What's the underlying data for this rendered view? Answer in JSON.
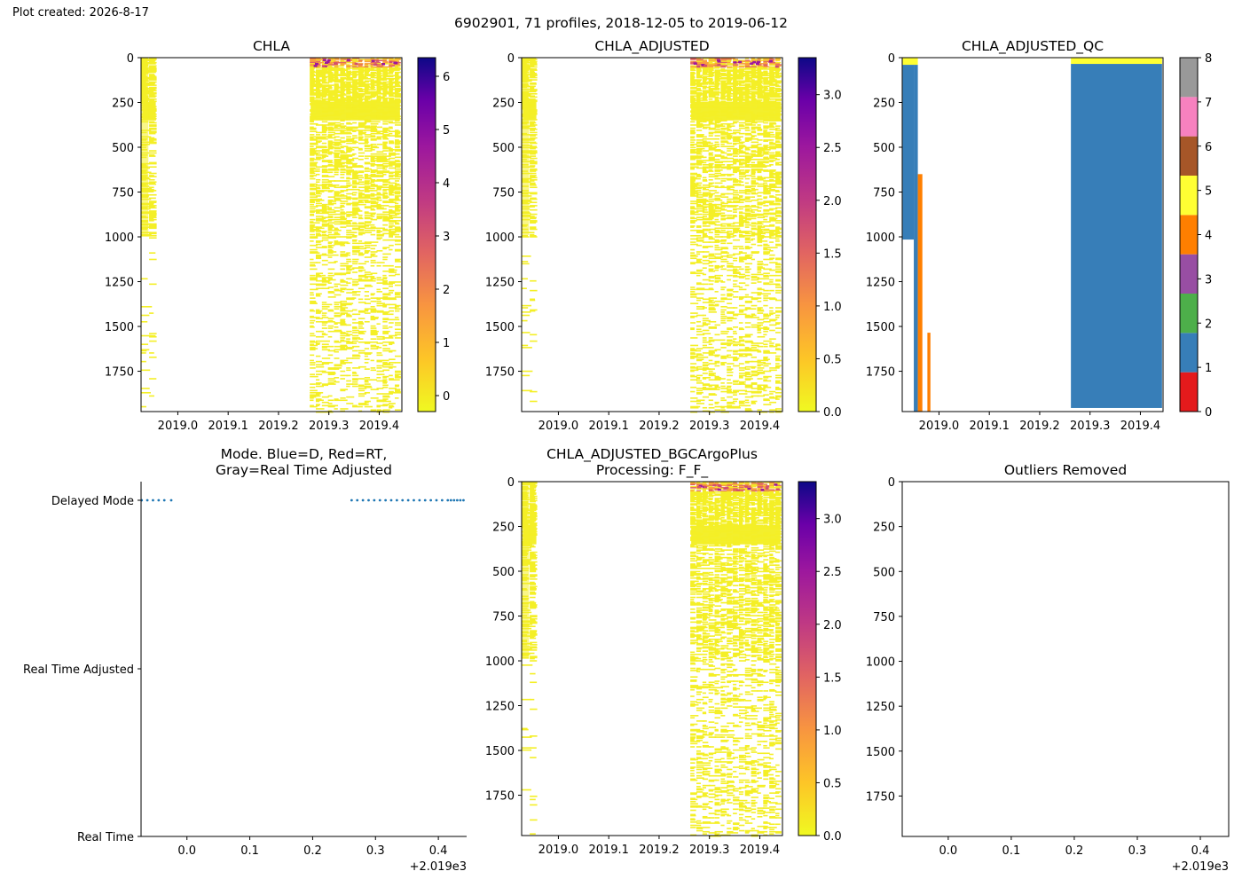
{
  "figure": {
    "created": "Plot created: 2026-8-17",
    "title": "6902901, 71 profiles, 2018-12-05 to 2019-06-12"
  },
  "chart_data": [
    {
      "id": "chla",
      "type": "heatmap",
      "title": "CHLA",
      "ylim": [
        1975,
        0
      ],
      "yticks": [
        0,
        250,
        500,
        750,
        1000,
        1250,
        1500,
        1750
      ],
      "xlim": [
        2018.927,
        2019.445
      ],
      "xticks": [
        2019.0,
        2019.1,
        2019.2,
        2019.3,
        2019.4
      ],
      "xticklabels": [
        "2019.0",
        "2019.1",
        "2019.2",
        "2019.3",
        "2019.4"
      ],
      "colormap": "plasma_r",
      "colorbar": {
        "min": -0.3,
        "max": 6.35,
        "ticks": [
          0,
          1,
          2,
          3,
          4,
          5,
          6
        ]
      },
      "data_extent": [
        {
          "x": [
            2018.928,
            2018.958
          ],
          "depth": [
            0,
            1975
          ]
        },
        {
          "x": [
            2019.262,
            2019.443
          ],
          "depth": [
            0,
            1975
          ]
        }
      ],
      "notes": "Sparse horizontal strokes of near-zero values (yellow); dense band ~250-350 m; occasional higher values (orange/purple) in top ~50 m."
    },
    {
      "id": "chla_adjusted",
      "type": "heatmap",
      "title": "CHLA_ADJUSTED",
      "ylim": [
        1975,
        0
      ],
      "yticks": [
        0,
        250,
        500,
        750,
        1000,
        1250,
        1500,
        1750
      ],
      "xlim": [
        2018.927,
        2019.445
      ],
      "xticks": [
        2019.0,
        2019.1,
        2019.2,
        2019.3,
        2019.4
      ],
      "xticklabels": [
        "2019.0",
        "2019.1",
        "2019.2",
        "2019.3",
        "2019.4"
      ],
      "colormap": "plasma_r",
      "colorbar": {
        "min": 0.0,
        "max": 3.35,
        "ticks": [
          0.0,
          0.5,
          1.0,
          1.5,
          2.0,
          2.5,
          3.0
        ]
      },
      "data_extent": [
        {
          "x": [
            2018.928,
            2018.958
          ],
          "depth": [
            0,
            1975
          ]
        },
        {
          "x": [
            2019.262,
            2019.443
          ],
          "depth": [
            0,
            1975
          ]
        }
      ]
    },
    {
      "id": "chla_adjusted_qc",
      "type": "heatmap",
      "title": "CHLA_ADJUSTED_QC",
      "ylim": [
        1975,
        0
      ],
      "yticks": [
        0,
        250,
        500,
        750,
        1000,
        1250,
        1500,
        1750
      ],
      "xlim": [
        2018.927,
        2019.445
      ],
      "xticks": [
        2019.0,
        2019.1,
        2019.2,
        2019.3,
        2019.4
      ],
      "xticklabels": [
        "2019.0",
        "2019.1",
        "2019.2",
        "2019.3",
        "2019.4"
      ],
      "colorbar": {
        "min": 0,
        "max": 8,
        "ticks": [
          0,
          1,
          2,
          3,
          4,
          5,
          6,
          7,
          8
        ],
        "classes": [
          "#e41a1c",
          "#377eb8",
          "#4daf4a",
          "#984ea3",
          "#ff7f00",
          "#ffff33",
          "#a65628",
          "#f781bf",
          "#999999"
        ]
      },
      "blocks": [
        {
          "flag": 5,
          "x": [
            2018.928,
            2018.958
          ],
          "depth": [
            0,
            40
          ]
        },
        {
          "flag": 1,
          "x": [
            2018.928,
            2018.95
          ],
          "depth": [
            40,
            1015
          ]
        },
        {
          "flag": 1,
          "x": [
            2018.95,
            2018.958
          ],
          "depth": [
            40,
            1975
          ]
        },
        {
          "flag": 1,
          "x": [
            2018.953,
            2018.958
          ],
          "depth": [
            1000,
            1975
          ]
        },
        {
          "flag": 4,
          "x": [
            2018.958,
            2018.967
          ],
          "depth": [
            650,
            1975
          ]
        },
        {
          "flag": 4,
          "x": [
            2018.977,
            2018.983
          ],
          "depth": [
            1535,
            1975
          ]
        },
        {
          "flag": 5,
          "x": [
            2019.262,
            2019.443
          ],
          "depth": [
            0,
            35
          ]
        },
        {
          "flag": 1,
          "x": [
            2019.262,
            2019.443
          ],
          "depth": [
            35,
            1955
          ]
        }
      ]
    },
    {
      "id": "mode",
      "type": "scatter",
      "title": "Mode. Blue=D, Red=RT,\nGray=Real Time Adjusted",
      "xlim": [
        -0.073,
        0.445
      ],
      "xticks": [
        0.0,
        0.1,
        0.2,
        0.3,
        0.4
      ],
      "xticklabels": [
        "0.0",
        "0.1",
        "0.2",
        "0.3",
        "0.4"
      ],
      "offset_label": "+2.019e3",
      "yticklabels": [
        "Delayed Mode",
        "Real Time Adjusted",
        "Real Time"
      ],
      "series": [
        {
          "color": "#1f77b4",
          "level": "Delayed Mode",
          "x": [
            -0.072,
            -0.063,
            -0.054,
            -0.045,
            -0.036,
            -0.025,
            0.262,
            0.271,
            0.28,
            0.289,
            0.298,
            0.307,
            0.316,
            0.325,
            0.334,
            0.343,
            0.352,
            0.361,
            0.37,
            0.379,
            0.388,
            0.397,
            0.406,
            0.415,
            0.42,
            0.425,
            0.43,
            0.435,
            0.44
          ]
        }
      ]
    },
    {
      "id": "bgcargoplus",
      "type": "heatmap",
      "title": "CHLA_ADJUSTED_BGCArgoPlus\nProcessing: F_F_",
      "ylim": [
        1975,
        0
      ],
      "yticks": [
        0,
        250,
        500,
        750,
        1000,
        1250,
        1500,
        1750
      ],
      "xlim": [
        2018.927,
        2019.445
      ],
      "xticks": [
        2019.0,
        2019.1,
        2019.2,
        2019.3,
        2019.4
      ],
      "xticklabels": [
        "2019.0",
        "2019.1",
        "2019.2",
        "2019.3",
        "2019.4"
      ],
      "colormap": "plasma_r",
      "colorbar": {
        "min": 0.0,
        "max": 3.35,
        "ticks": [
          0.0,
          0.5,
          1.0,
          1.5,
          2.0,
          2.5,
          3.0
        ]
      },
      "data_extent": [
        {
          "x": [
            2018.928,
            2018.958
          ],
          "depth": [
            0,
            1975
          ]
        },
        {
          "x": [
            2019.262,
            2019.443
          ],
          "depth": [
            0,
            1975
          ]
        }
      ]
    },
    {
      "id": "outliers",
      "type": "scatter",
      "title": "Outliers Removed",
      "ylim": [
        1975,
        0
      ],
      "yticks": [
        0,
        250,
        500,
        750,
        1000,
        1250,
        1500,
        1750
      ],
      "xlim": [
        -0.073,
        0.445
      ],
      "xticks": [
        0.0,
        0.1,
        0.2,
        0.3,
        0.4
      ],
      "xticklabels": [
        "0.0",
        "0.1",
        "0.2",
        "0.3",
        "0.4"
      ],
      "offset_label": "+2.019e3",
      "series": []
    }
  ]
}
